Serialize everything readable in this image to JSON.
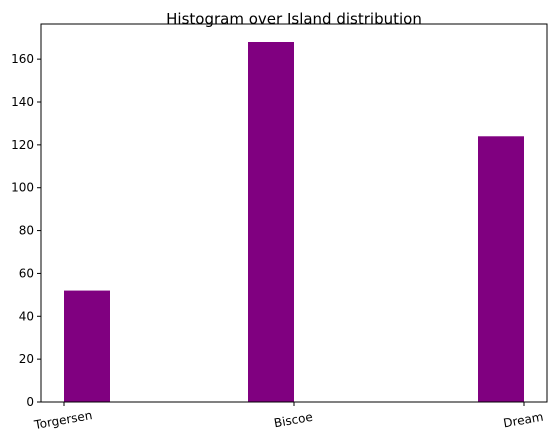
{
  "chart_data": {
    "type": "bar",
    "title": "Histogram over Island distribution",
    "xlabel": "",
    "ylabel": "",
    "categories": [
      "Torgersen",
      "Biscoe",
      "Dream"
    ],
    "values": [
      52,
      168,
      124
    ],
    "ylim": [
      0,
      176.4
    ],
    "yticks": [
      0,
      20,
      40,
      60,
      80,
      100,
      120,
      140,
      160
    ],
    "bar_color": "#800080",
    "grid": false,
    "legend": "none",
    "xtick_rotation_deg": -10
  }
}
